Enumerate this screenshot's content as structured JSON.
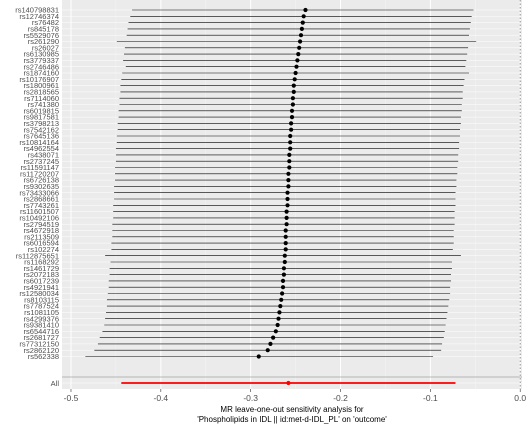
{
  "chart_data": {
    "type": "forest",
    "xlabel_lines": [
      "MR leave-one-out sensitivity analysis for",
      "'Phospholipids in IDL || id:met-d-IDL_PL' on 'outcome'"
    ],
    "ylabel": "",
    "xlim": [
      -0.51,
      0.002
    ],
    "xticks": [
      -0.5,
      -0.4,
      -0.3,
      -0.2,
      -0.1,
      0.0
    ],
    "xtick_labels": [
      "-0.5",
      "-0.4",
      "-0.3",
      "-0.2",
      "-0.1",
      "0.0"
    ],
    "reference_line_x": 0,
    "grid": true,
    "snps": [
      {
        "label": "rs140798831",
        "b": -0.239,
        "lo": -0.432,
        "hi": -0.052
      },
      {
        "label": "rs12746374",
        "b": -0.241,
        "lo": -0.434,
        "hi": -0.054
      },
      {
        "label": "rs76482",
        "b": -0.242,
        "lo": -0.436,
        "hi": -0.055
      },
      {
        "label": "rs845178",
        "b": -0.243,
        "lo": -0.437,
        "hi": -0.056
      },
      {
        "label": "rs5529076",
        "b": -0.244,
        "lo": -0.438,
        "hi": -0.057
      },
      {
        "label": "rs261290",
        "b": -0.245,
        "lo": -0.449,
        "hi": -0.049
      },
      {
        "label": "rs26027",
        "b": -0.246,
        "lo": -0.44,
        "hi": -0.058
      },
      {
        "label": "rs6130985",
        "b": -0.247,
        "lo": -0.441,
        "hi": -0.059
      },
      {
        "label": "rs3779337",
        "b": -0.248,
        "lo": -0.442,
        "hi": -0.06
      },
      {
        "label": "rs2746486",
        "b": -0.249,
        "lo": -0.439,
        "hi": -0.061
      },
      {
        "label": "rs1874160",
        "b": -0.25,
        "lo": -0.443,
        "hi": -0.057
      },
      {
        "label": "rs10176907",
        "b": -0.251,
        "lo": -0.444,
        "hi": -0.062
      },
      {
        "label": "rs1800961",
        "b": -0.252,
        "lo": -0.445,
        "hi": -0.063
      },
      {
        "label": "rs2818565",
        "b": -0.252,
        "lo": -0.445,
        "hi": -0.064
      },
      {
        "label": "rs7114060",
        "b": -0.253,
        "lo": -0.446,
        "hi": -0.064
      },
      {
        "label": "rs741380",
        "b": -0.253,
        "lo": -0.446,
        "hi": -0.065
      },
      {
        "label": "rs6019815",
        "b": -0.254,
        "lo": -0.447,
        "hi": -0.065
      },
      {
        "label": "rs9817581",
        "b": -0.254,
        "lo": -0.447,
        "hi": -0.066
      },
      {
        "label": "rs3798213",
        "b": -0.255,
        "lo": -0.448,
        "hi": -0.066
      },
      {
        "label": "rs7542162",
        "b": -0.255,
        "lo": -0.448,
        "hi": -0.067
      },
      {
        "label": "rs7645136",
        "b": -0.256,
        "lo": -0.449,
        "hi": -0.067
      },
      {
        "label": "rs10814164",
        "b": -0.256,
        "lo": -0.449,
        "hi": -0.068
      },
      {
        "label": "rs4962554",
        "b": -0.256,
        "lo": -0.45,
        "hi": -0.068
      },
      {
        "label": "rs438071",
        "b": -0.257,
        "lo": -0.45,
        "hi": -0.069
      },
      {
        "label": "rs2737245",
        "b": -0.257,
        "lo": -0.45,
        "hi": -0.069
      },
      {
        "label": "rs11591147",
        "b": -0.257,
        "lo": -0.451,
        "hi": -0.07
      },
      {
        "label": "rs11720207",
        "b": -0.258,
        "lo": -0.451,
        "hi": -0.07
      },
      {
        "label": "rs6726138",
        "b": -0.258,
        "lo": -0.451,
        "hi": -0.071
      },
      {
        "label": "rs9302635",
        "b": -0.258,
        "lo": -0.452,
        "hi": -0.071
      },
      {
        "label": "rs73433066",
        "b": -0.259,
        "lo": -0.452,
        "hi": -0.072
      },
      {
        "label": "rs2868661",
        "b": -0.259,
        "lo": -0.452,
        "hi": -0.072
      },
      {
        "label": "rs7743261",
        "b": -0.259,
        "lo": -0.453,
        "hi": -0.072
      },
      {
        "label": "rs11601507",
        "b": -0.26,
        "lo": -0.453,
        "hi": -0.073
      },
      {
        "label": "rs10492106",
        "b": -0.26,
        "lo": -0.453,
        "hi": -0.073
      },
      {
        "label": "rs2794519",
        "b": -0.26,
        "lo": -0.454,
        "hi": -0.073
      },
      {
        "label": "rs4672918",
        "b": -0.261,
        "lo": -0.454,
        "hi": -0.074
      },
      {
        "label": "rs2113509",
        "b": -0.261,
        "lo": -0.454,
        "hi": -0.074
      },
      {
        "label": "rs6016594",
        "b": -0.261,
        "lo": -0.455,
        "hi": -0.074
      },
      {
        "label": "rs102274",
        "b": -0.261,
        "lo": -0.455,
        "hi": -0.075
      },
      {
        "label": "rs112875651",
        "b": -0.262,
        "lo": -0.462,
        "hi": -0.066
      },
      {
        "label": "rs1168292",
        "b": -0.262,
        "lo": -0.456,
        "hi": -0.076
      },
      {
        "label": "rs1461729",
        "b": -0.263,
        "lo": -0.457,
        "hi": -0.076
      },
      {
        "label": "rs2072183",
        "b": -0.263,
        "lo": -0.457,
        "hi": -0.077
      },
      {
        "label": "rs6017239",
        "b": -0.264,
        "lo": -0.458,
        "hi": -0.077
      },
      {
        "label": "rs4921941",
        "b": -0.264,
        "lo": -0.458,
        "hi": -0.078
      },
      {
        "label": "rs12580034",
        "b": -0.265,
        "lo": -0.459,
        "hi": -0.078
      },
      {
        "label": "rs8103115",
        "b": -0.266,
        "lo": -0.46,
        "hi": -0.079
      },
      {
        "label": "rs7787524",
        "b": -0.267,
        "lo": -0.46,
        "hi": -0.08
      },
      {
        "label": "rs1081105",
        "b": -0.268,
        "lo": -0.461,
        "hi": -0.081
      },
      {
        "label": "rs4299376",
        "b": -0.269,
        "lo": -0.462,
        "hi": -0.082
      },
      {
        "label": "rs9381410",
        "b": -0.27,
        "lo": -0.463,
        "hi": -0.083
      },
      {
        "label": "rs6544716",
        "b": -0.272,
        "lo": -0.465,
        "hi": -0.084
      },
      {
        "label": "rs2681727",
        "b": -0.275,
        "lo": -0.468,
        "hi": -0.085
      },
      {
        "label": "rs77312150",
        "b": -0.278,
        "lo": -0.47,
        "hi": -0.087
      },
      {
        "label": "rs2862120",
        "b": -0.281,
        "lo": -0.474,
        "hi": -0.088
      },
      {
        "label": "rs562338",
        "b": -0.291,
        "lo": -0.484,
        "hi": -0.097
      }
    ],
    "all": {
      "label": "All",
      "b": -0.258,
      "lo": -0.444,
      "hi": -0.072
    }
  },
  "colors": {
    "panel_bg": "#ebebeb",
    "grid_major": "#ffffff",
    "grid_minor": "#f4f4f4",
    "point": "#000000",
    "all_line": "#ff0000",
    "all_point": "#ff0000",
    "ref_line": "#7f7f7f",
    "tick_text": "#4d4d4d"
  }
}
